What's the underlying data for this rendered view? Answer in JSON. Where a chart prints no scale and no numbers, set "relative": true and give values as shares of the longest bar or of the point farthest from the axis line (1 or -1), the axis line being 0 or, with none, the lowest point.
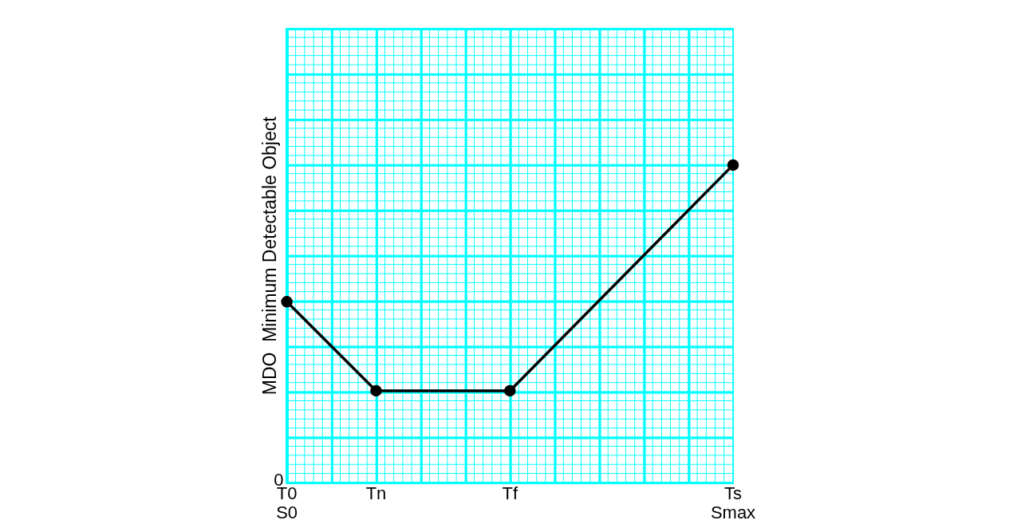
{
  "chart_data": {
    "type": "line",
    "ylabel": "MDO  Minimum Detectable Object",
    "relative": true,
    "categories": [
      "T0\nS0",
      null,
      "Tn",
      null,
      null,
      "Tf",
      null,
      null,
      null,
      null,
      "Ts\nSmax"
    ],
    "series": [
      {
        "color": "#000000",
        "values": [
          0.57,
          null,
          0.29,
          null,
          null,
          0.29,
          null,
          null,
          null,
          null,
          1
        ]
      }
    ],
    "annotations": [
      "0"
    ],
    "legend": false,
    "marker": "circle",
    "line_style": "solid"
  }
}
